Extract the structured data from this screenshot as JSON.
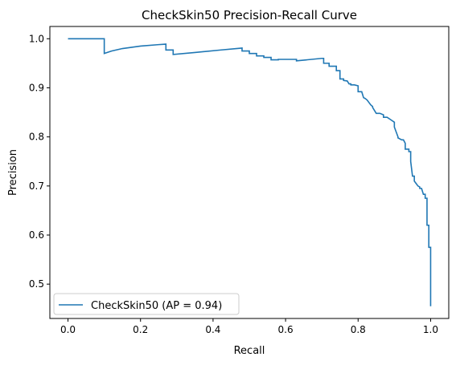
{
  "chart_data": {
    "type": "line",
    "title": "CheckSkin50 Precision-Recall Curve",
    "xlabel": "Recall",
    "ylabel": "Precision",
    "xlim": [
      -0.05,
      1.05
    ],
    "ylim": [
      0.43,
      1.025
    ],
    "xticks": [
      0.0,
      0.2,
      0.4,
      0.6,
      0.8,
      1.0
    ],
    "xtick_labels": [
      "0.0",
      "0.2",
      "0.4",
      "0.6",
      "0.8",
      "1.0"
    ],
    "yticks": [
      0.5,
      0.6,
      0.7,
      0.8,
      0.9,
      1.0
    ],
    "ytick_labels": [
      "0.5",
      "0.6",
      "0.7",
      "0.8",
      "0.9",
      "1.0"
    ],
    "grid": false,
    "legend_position": "lower-left",
    "series": [
      {
        "name": "CheckSkin50 (AP = 0.94)",
        "color": "#1f77b4",
        "x": [
          0.0,
          0.1,
          0.1,
          0.12,
          0.15,
          0.2,
          0.25,
          0.27,
          0.27,
          0.29,
          0.29,
          0.35,
          0.42,
          0.48,
          0.48,
          0.5,
          0.5,
          0.52,
          0.52,
          0.54,
          0.54,
          0.56,
          0.56,
          0.58,
          0.58,
          0.63,
          0.63,
          0.7,
          0.705,
          0.705,
          0.72,
          0.72,
          0.74,
          0.74,
          0.75,
          0.75,
          0.76,
          0.76,
          0.77,
          0.775,
          0.78,
          0.78,
          0.79,
          0.8,
          0.8,
          0.81,
          0.815,
          0.82,
          0.825,
          0.83,
          0.835,
          0.84,
          0.84,
          0.85,
          0.86,
          0.87,
          0.87,
          0.88,
          0.89,
          0.9,
          0.9,
          0.905,
          0.91,
          0.91,
          0.92,
          0.925,
          0.93,
          0.93,
          0.94,
          0.94,
          0.945,
          0.945,
          0.95,
          0.955,
          0.955,
          0.96,
          0.965,
          0.97,
          0.97,
          0.975,
          0.98,
          0.985,
          0.985,
          0.99,
          0.99,
          0.995,
          0.995,
          1.0,
          1.0
        ],
        "y": [
          1.0,
          1.0,
          0.97,
          0.975,
          0.98,
          0.985,
          0.988,
          0.989,
          0.977,
          0.977,
          0.968,
          0.972,
          0.977,
          0.981,
          0.975,
          0.975,
          0.97,
          0.97,
          0.965,
          0.965,
          0.962,
          0.962,
          0.957,
          0.957,
          0.958,
          0.958,
          0.955,
          0.96,
          0.96,
          0.95,
          0.95,
          0.944,
          0.944,
          0.935,
          0.935,
          0.918,
          0.918,
          0.915,
          0.914,
          0.908,
          0.908,
          0.906,
          0.906,
          0.904,
          0.892,
          0.892,
          0.88,
          0.878,
          0.875,
          0.87,
          0.865,
          0.862,
          0.86,
          0.848,
          0.848,
          0.845,
          0.84,
          0.84,
          0.835,
          0.83,
          0.82,
          0.81,
          0.8,
          0.798,
          0.794,
          0.794,
          0.787,
          0.775,
          0.775,
          0.77,
          0.77,
          0.75,
          0.72,
          0.72,
          0.71,
          0.705,
          0.7,
          0.698,
          0.695,
          0.695,
          0.683,
          0.683,
          0.675,
          0.675,
          0.62,
          0.62,
          0.575,
          0.575,
          0.455
        ]
      }
    ]
  }
}
